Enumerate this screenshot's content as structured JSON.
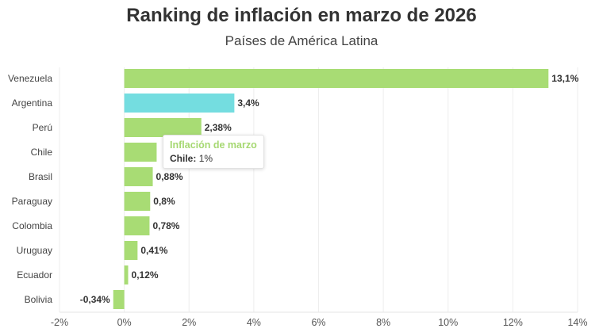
{
  "chart_data": {
    "type": "bar",
    "orientation": "horizontal",
    "title": "Ranking de inflación en marzo de 2026",
    "subtitle": "Países de América Latina",
    "categories": [
      "Venezuela",
      "Argentina",
      "Perú",
      "Chile",
      "Brasil",
      "Paraguay",
      "Colombia",
      "Uruguay",
      "Ecuador",
      "Bolivia"
    ],
    "values": [
      13.1,
      3.4,
      2.38,
      1,
      0.88,
      0.8,
      0.78,
      0.41,
      0.12,
      -0.34
    ],
    "data_labels": [
      "13,1%",
      "3,4%",
      "2,38%",
      "",
      "0,88%",
      "0,8%",
      "0,78%",
      "0,41%",
      "0,12%",
      "-0,34%"
    ],
    "xlim": [
      -2,
      14
    ],
    "x_ticks": [
      -2,
      0,
      2,
      4,
      6,
      8,
      10,
      12,
      14
    ],
    "x_tick_labels": [
      "-2%",
      "0%",
      "2%",
      "4%",
      "6%",
      "8%",
      "10%",
      "12%",
      "14%"
    ],
    "grid": "vertical",
    "colors": {
      "default": "#a8dc74",
      "highlight": "#74dde0"
    },
    "highlight_category": "Argentina",
    "tooltip": {
      "series_name": "Inflación de marzo",
      "category": "Chile:",
      "value": "1%"
    }
  }
}
